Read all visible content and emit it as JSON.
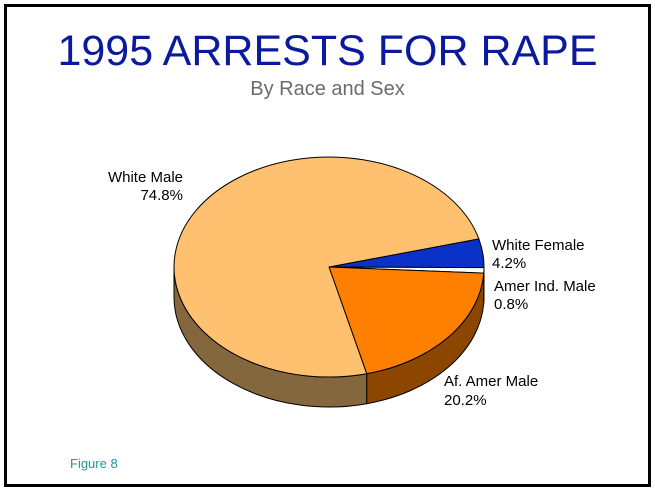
{
  "title": "1995 ARRESTS FOR RAPE",
  "subtitle": "By Race and Sex",
  "figure_label": "Figure 8",
  "colors": {
    "title": "#0b1a9c",
    "subtitle": "#6b6b6b",
    "figure_label": "#1f9a9a",
    "outline": "#000000"
  },
  "chart_data": {
    "type": "pie",
    "title": "1995 ARRESTS FOR RAPE",
    "subtitle": "By Race and Sex",
    "legend": "none",
    "three_d": true,
    "slices": [
      {
        "label": "White Female",
        "value": 4.2,
        "value_text": "4.2%",
        "color": "#0a32c8",
        "side_color": "#061f80"
      },
      {
        "label": "Amer Ind. Male",
        "value": 0.8,
        "value_text": "0.8%",
        "color": "#ffffff",
        "side_color": "#bfbfbf"
      },
      {
        "label": "Af. Amer Male",
        "value": 20.2,
        "value_text": "20.2%",
        "color": "#ff8000",
        "side_color": "#8c4600"
      },
      {
        "label": "White Male",
        "value": 74.8,
        "value_text": "74.8%",
        "color": "#ffc070",
        "side_color": "#85673d"
      }
    ]
  }
}
